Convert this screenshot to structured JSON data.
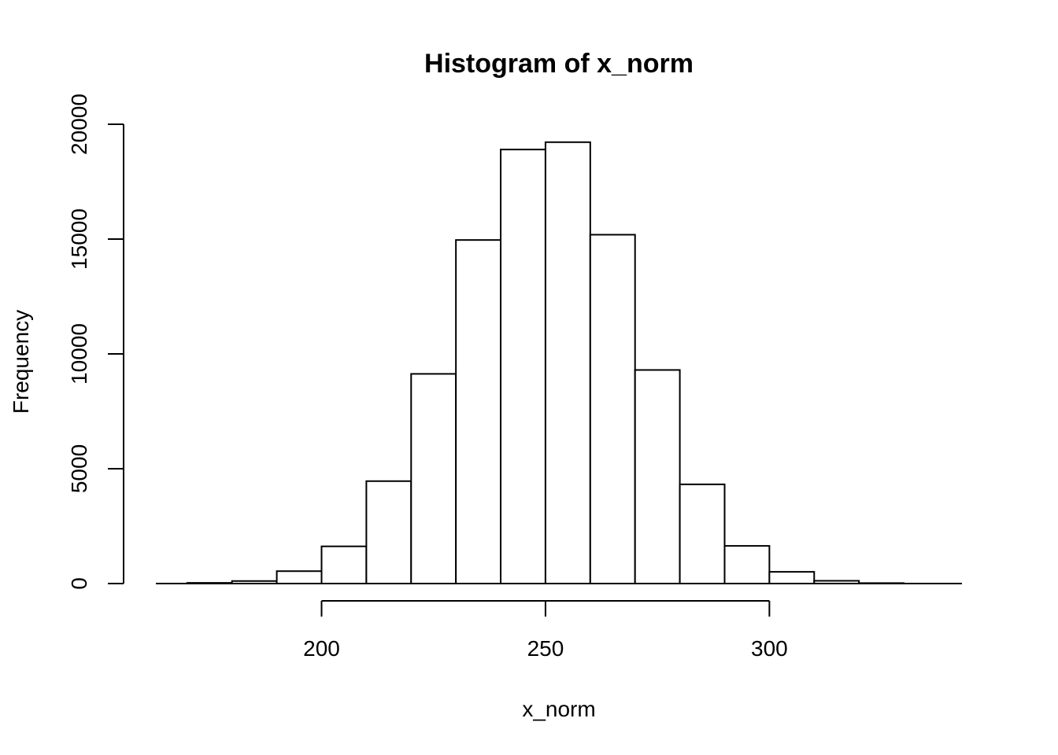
{
  "chart_data": {
    "type": "bar",
    "title": "Histogram of x_norm",
    "xlabel": "x_norm",
    "ylabel": "Frequency",
    "bin_edges": [
      170,
      180,
      190,
      200,
      210,
      220,
      230,
      240,
      250,
      260,
      270,
      280,
      290,
      300,
      310,
      320,
      330
    ],
    "values": [
      30,
      110,
      540,
      1620,
      4460,
      9130,
      14960,
      18900,
      19220,
      15190,
      9300,
      4320,
      1640,
      510,
      120,
      20
    ],
    "x_ticks": [
      "200",
      "250",
      "300"
    ],
    "y_ticks": [
      "0",
      "5000",
      "10000",
      "15000",
      "20000"
    ],
    "xlim": [
      163,
      343
    ],
    "ylim": [
      0,
      20000
    ],
    "grid": false,
    "bar_fill": "#ffffff",
    "bar_stroke": "#000000"
  }
}
